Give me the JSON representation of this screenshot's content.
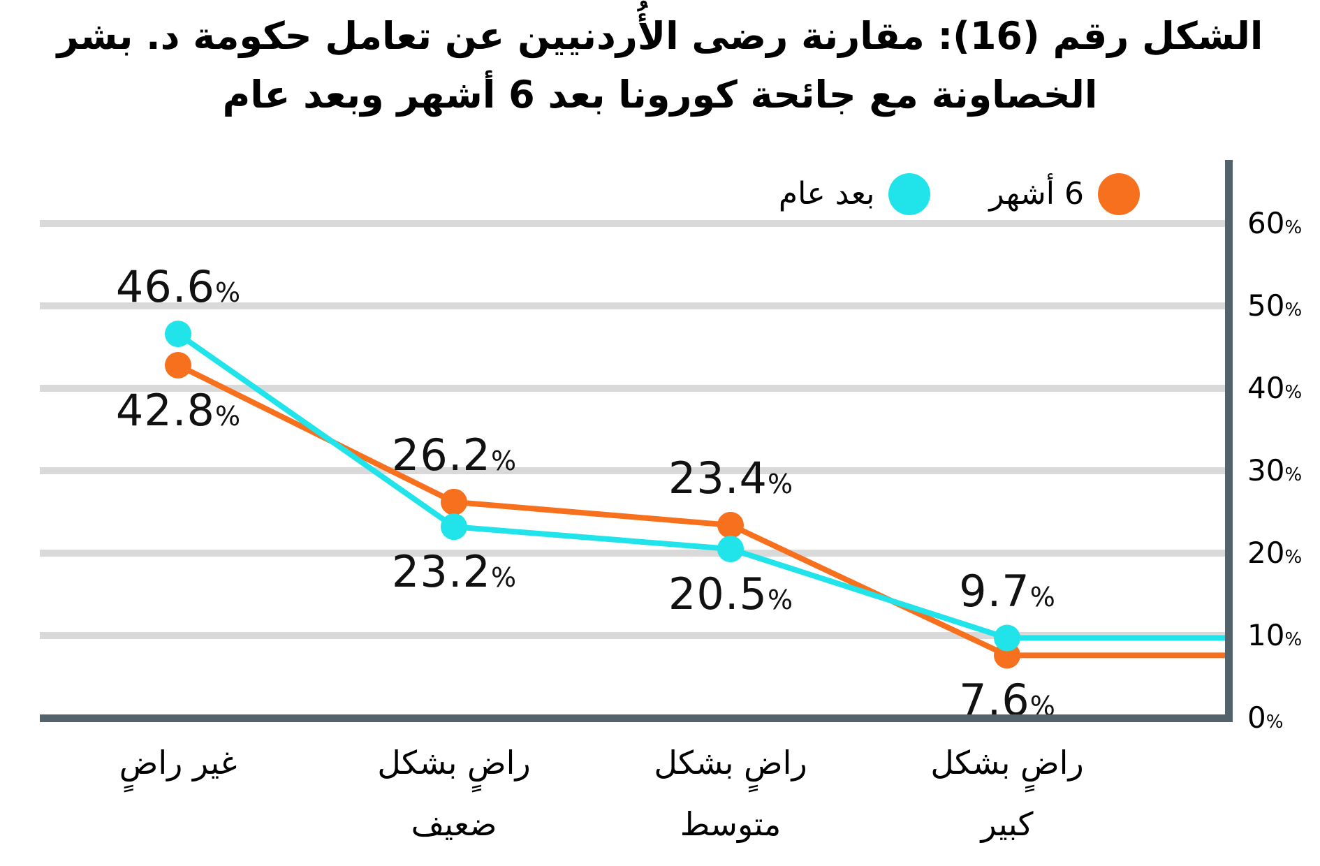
{
  "title": {
    "line1": "الشكل رقم (16): مقارنة رضى الأُردنيين عن تعامل حكومة د. بشر",
    "line2": "الخصاونة مع جائحة كورونا بعد 6 أشهر وبعد عام"
  },
  "legend": {
    "after_year_label": "بعد عام",
    "six_months_label": "6 أشهر"
  },
  "colors": {
    "cyan": "#21E3EA",
    "orange": "#F7701E",
    "axis": "#53636B",
    "gridline": "#D9D9D9",
    "text": "#000000"
  },
  "chart_data": {
    "type": "line",
    "title": "الشكل رقم (16): مقارنة رضى الأُردنيين عن تعامل حكومة د. بشر الخصاونة مع جائحة كورونا بعد 6 أشهر وبعد عام",
    "categories": [
      "غير راضٍ",
      "راضٍ بشكل ضعيف",
      "راضٍ بشكل متوسط",
      "راضٍ بشكل كبير"
    ],
    "category_lines": [
      [
        "غير راضٍ"
      ],
      [
        "راضٍ بشكل",
        "ضعيف"
      ],
      [
        "راضٍ بشكل",
        "متوسط"
      ],
      [
        "راضٍ بشكل",
        "كبير"
      ]
    ],
    "series": [
      {
        "name": "6 أشهر",
        "color_key": "orange",
        "values": [
          42.8,
          26.2,
          23.4,
          7.6
        ],
        "labels": [
          "42.8",
          "26.2",
          "23.4",
          "7.6"
        ],
        "label_placements": [
          "below",
          "above",
          "above",
          "below"
        ]
      },
      {
        "name": "بعد عام",
        "color_key": "cyan",
        "values": [
          46.6,
          23.2,
          20.5,
          9.7
        ],
        "labels": [
          "46.6",
          "23.2",
          "20.5",
          "9.7"
        ],
        "label_placements": [
          "above",
          "below",
          "below",
          "above"
        ]
      }
    ],
    "y_axis": {
      "min": 0,
      "max": 60,
      "ticks": [
        60,
        50,
        40,
        30,
        20,
        10,
        0
      ],
      "unit": "%"
    },
    "grid": "horizontal",
    "legend_position": "top-right",
    "value_unit": "%"
  }
}
